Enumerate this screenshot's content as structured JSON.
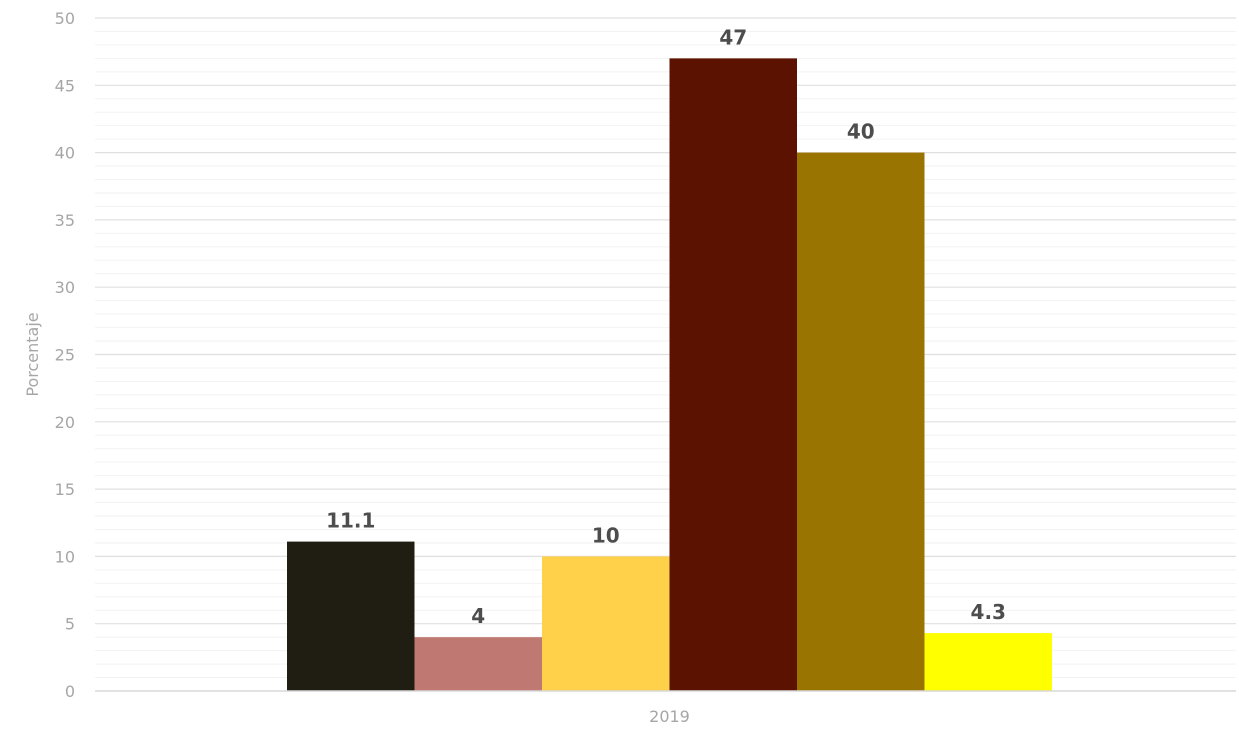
{
  "chart_data": {
    "type": "bar",
    "categories": [
      "2019"
    ],
    "series": [
      {
        "values": [
          11.1
        ],
        "color": "#201e12",
        "label": "11.1"
      },
      {
        "values": [
          4
        ],
        "color": "#c07872",
        "label": "4"
      },
      {
        "values": [
          10
        ],
        "color": "#ffd04a",
        "label": "10"
      },
      {
        "values": [
          47
        ],
        "color": "#5c1200",
        "label": "47"
      },
      {
        "values": [
          40
        ],
        "color": "#9a7400",
        "label": "40"
      },
      {
        "values": [
          4.3
        ],
        "color": "#ffff00",
        "label": "4.3"
      }
    ],
    "ylabel": "Porcentaje",
    "xlabel": "",
    "ylim": [
      0,
      50
    ],
    "yticks": [
      "0",
      "5",
      "10",
      "15",
      "20",
      "25",
      "30",
      "35",
      "40",
      "45",
      "50"
    ],
    "grid": true,
    "legend": "none"
  }
}
